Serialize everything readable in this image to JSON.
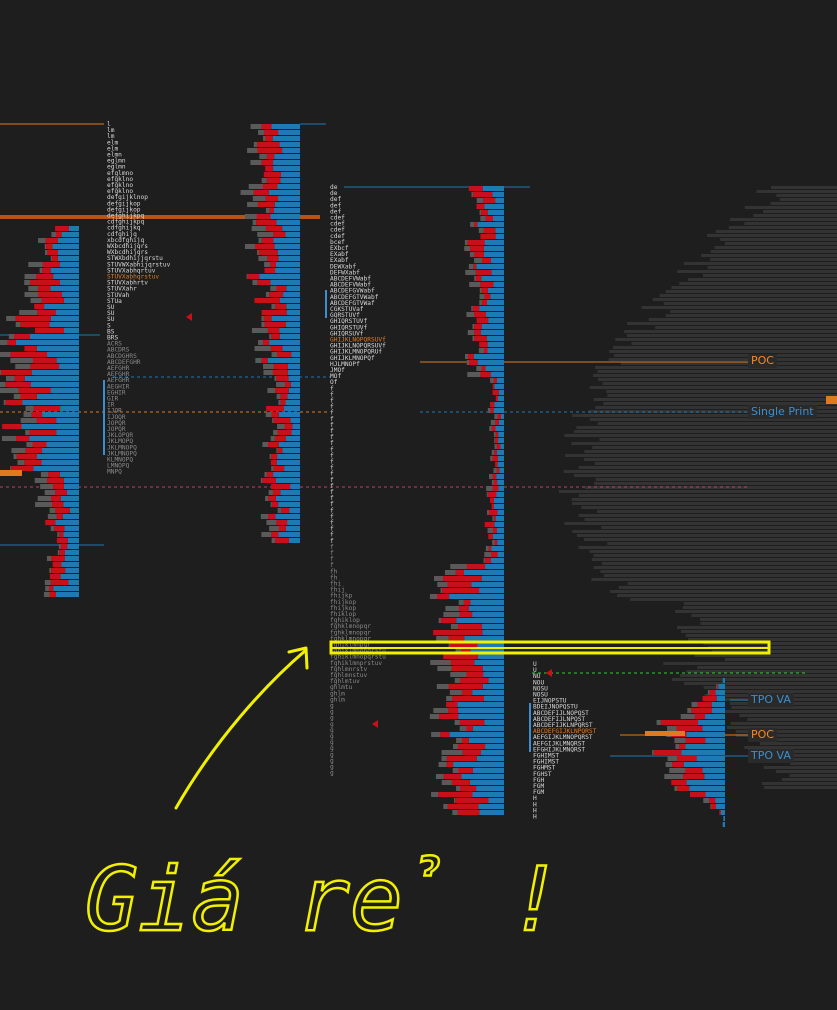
{
  "chart_data": {
    "type": "bar",
    "title": "",
    "annotations": {
      "poc_upper": "POC",
      "single_print": "Single Print",
      "tpo_va_upper": "TPO VA",
      "poc_lower": "POC",
      "tpo_va_lower": "TPO VA",
      "handwritten_note": "Giá rẻ !"
    },
    "profiles": [
      {
        "name": "profile-1",
        "tpo_rows": [
          "l",
          "lm",
          "lm",
          "elm",
          "elm",
          "elmn",
          "eglmn",
          "eglmn",
          "efglmno",
          "efgklno",
          "efgklno",
          "efgklno",
          "defgijklnop",
          "defgijkop",
          "defgijkop",
          "defghijkpq",
          "cdfghijkpq",
          "cdfghijkq",
          "cdfghijq",
          "xbcdfghijq",
          "WXbcdhijqrs",
          "WXbcdhijqrs",
          "STWXbdhijjqrstu",
          "STUVWXabhijqrstuv",
          "STUVXabhqrtuv",
          "STUVXabhqrstuv",
          "STUVXabhrtv",
          "STUVXahr",
          "STUVah",
          "STUa",
          "SU",
          "SU",
          "SU",
          "S",
          "BS",
          "BRS",
          "ACRS",
          "ABCDRS",
          "ABCDGHRS",
          "ABCDEFGHR",
          "AEFGHR",
          "AEFGHR",
          "AEFGHR",
          "AEGHIR",
          "EGHIR",
          "GIR",
          "IR",
          "IJOR",
          "IJOQR",
          "JOPQR",
          "JOPQR",
          "JKLOPQR",
          "JKLMOPQ",
          "JKLMNOPQ",
          "JKLMNOPQ",
          "KLMNOPQ",
          "LMNOPQ",
          "MNPQ"
        ]
      },
      {
        "name": "profile-2",
        "tpo_rows": [
          "de",
          "de",
          "def",
          "def",
          "def",
          "cdef",
          "cdef",
          "cdef",
          "cdef",
          "bcef",
          "EXbcf",
          "EXabf",
          "EXabf",
          "DEWXabf",
          "DEFWXabf",
          "ABCDEFVWabf",
          "ABCDEFVWabf",
          "ABCDEFGVWabf",
          "ABCDEFGTVWabf",
          "ABCDEFGTVWaf",
          "CGKSTUVaf",
          "GQRSTUVf",
          "GHIQRSTUVf",
          "GHIQRSTUVf",
          "GHIQRSUVf",
          "GHIJKLNOPQRSUVf",
          "GHIJKLNOPQRSUVf",
          "GHIJKLMNOPQRUf",
          "GHIJKLMNOPQf",
          "HJLMNOPf",
          "JMOf",
          "MOf",
          "Of",
          "f",
          "f",
          "f",
          "f",
          "f",
          "f",
          "f",
          "f",
          "f",
          "f",
          "f",
          "f",
          "f",
          "f",
          "f",
          "f",
          "f",
          "f",
          "f",
          "f",
          "f",
          "f",
          "f",
          "f",
          "f",
          "f",
          "f",
          "f",
          "f",
          "f",
          "fh",
          "fh",
          "fhi",
          "fhij",
          "fhijkp",
          "fhijkop",
          "fhijkop",
          "fhiklop",
          "fghiklop",
          "fghklmnopqr",
          "fghklmnopqr",
          "fghklmnopqr",
          "fghiklmnpqr",
          "fghiklmnopqrstu",
          "fghiklmnopqrstu",
          "fghiklmnprstuv",
          "fghlmnrstv",
          "fghlmnstuv",
          "fghlmtuv",
          "ghlmtu",
          "ghlm",
          "ghlm",
          "g",
          "g",
          "g",
          "g",
          "g",
          "g",
          "g",
          "g",
          "g",
          "g",
          "g",
          "g"
        ]
      },
      {
        "name": "profile-3",
        "tpo_rows": [
          "U",
          "U",
          "NU",
          "NOU",
          "NOSU",
          "NOSU",
          "EIJNOPSTU",
          "BDEIJNOPQSTU",
          "ABCDEFIJLNOPQST",
          "ABCDEFIJLNPQST",
          "ABCDEFIJKLNPQRST",
          "ABCDEFGIJKLNPQRST",
          "AEFGIJKLMNOPQRST",
          "AEFGIJKLMNQRST",
          "EFGHIJKLMNQRST",
          "FGHIMST",
          "FGHIMST",
          "FGHMST",
          "FGHST",
          "FGH",
          "FGM",
          "FGM",
          "H",
          "H",
          "H",
          "H"
        ]
      }
    ]
  }
}
